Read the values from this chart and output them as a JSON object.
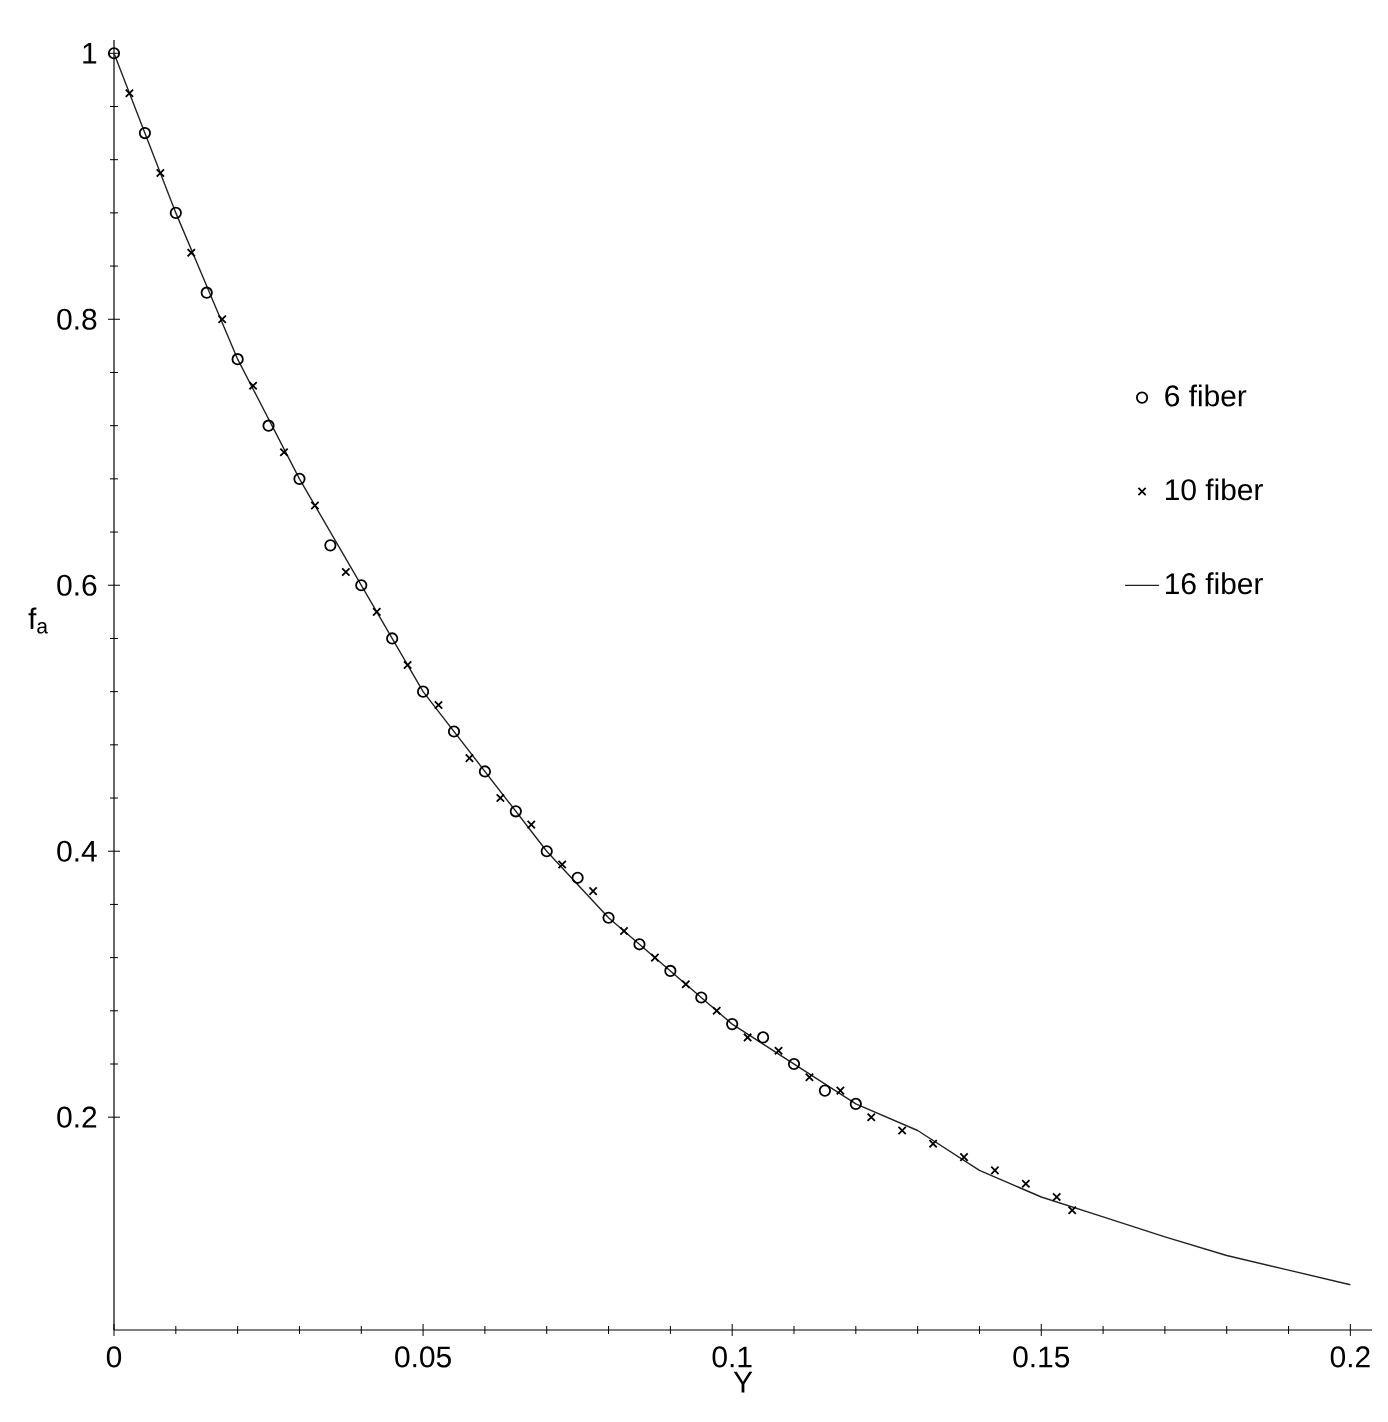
{
  "chart_data": {
    "type": "line",
    "xlabel": "Y",
    "ylabel": "f$_{a}$",
    "xlim": [
      0,
      0.2035
    ],
    "ylim": [
      0.04,
      1.01
    ],
    "xticks": [
      0,
      0.05,
      0.1,
      0.15,
      0.2
    ],
    "yticks": [
      0.2,
      0.4,
      0.6,
      0.8,
      1
    ],
    "grid": false,
    "legend": "right",
    "series": [
      {
        "name": "6 fiber",
        "type": "scatter",
        "marker": "circle",
        "color": "#000000",
        "x": [
          0,
          0.005,
          0.01,
          0.015,
          0.02,
          0.025,
          0.03,
          0.035,
          0.04,
          0.045,
          0.05,
          0.055,
          0.06,
          0.065,
          0.07,
          0.075,
          0.08,
          0.085,
          0.09,
          0.095,
          0.1,
          0.105,
          0.11,
          0.115,
          0.12
        ],
        "values": [
          1,
          0.94,
          0.88,
          0.82,
          0.77,
          0.72,
          0.68,
          0.63,
          0.6,
          0.56,
          0.52,
          0.49,
          0.46,
          0.43,
          0.4,
          0.38,
          0.35,
          0.33,
          0.31,
          0.29,
          0.27,
          0.26,
          0.24,
          0.22,
          0.21
        ]
      },
      {
        "name": "10 fiber",
        "type": "scatter",
        "marker": "cross",
        "color": "#000000",
        "x": [
          0.0025,
          0.0075,
          0.0125,
          0.0175,
          0.0225,
          0.0275,
          0.0325,
          0.0375,
          0.0425,
          0.0475,
          0.0525,
          0.0575,
          0.0625,
          0.0675,
          0.0725,
          0.0775,
          0.0825,
          0.0875,
          0.0925,
          0.0975,
          0.1025,
          0.1075,
          0.1125,
          0.1175,
          0.1225,
          0.1275,
          0.1325,
          0.1375,
          0.1425,
          0.1475,
          0.1525,
          0.155
        ],
        "values": [
          0.97,
          0.91,
          0.85,
          0.8,
          0.75,
          0.7,
          0.66,
          0.61,
          0.58,
          0.54,
          0.51,
          0.47,
          0.44,
          0.42,
          0.39,
          0.37,
          0.34,
          0.32,
          0.3,
          0.28,
          0.26,
          0.25,
          0.23,
          0.22,
          0.2,
          0.19,
          0.18,
          0.17,
          0.16,
          0.15,
          0.14,
          0.13
        ]
      },
      {
        "name": "16 fiber",
        "marker": "none",
        "line_style": "solid",
        "color": "#222222",
        "x": [
          0,
          0.01,
          0.02,
          0.03,
          0.04,
          0.05,
          0.06,
          0.07,
          0.08,
          0.09,
          0.1,
          0.11,
          0.12,
          0.13,
          0.14,
          0.15,
          0.16,
          0.17,
          0.18,
          0.19,
          0.2
        ],
        "values": [
          1,
          0.88,
          0.77,
          0.68,
          0.6,
          0.52,
          0.46,
          0.4,
          0.35,
          0.31,
          0.27,
          0.24,
          0.21,
          0.19,
          0.16,
          0.14,
          0.125,
          0.11,
          0.096,
          0.085,
          0.074
        ]
      }
    ]
  }
}
